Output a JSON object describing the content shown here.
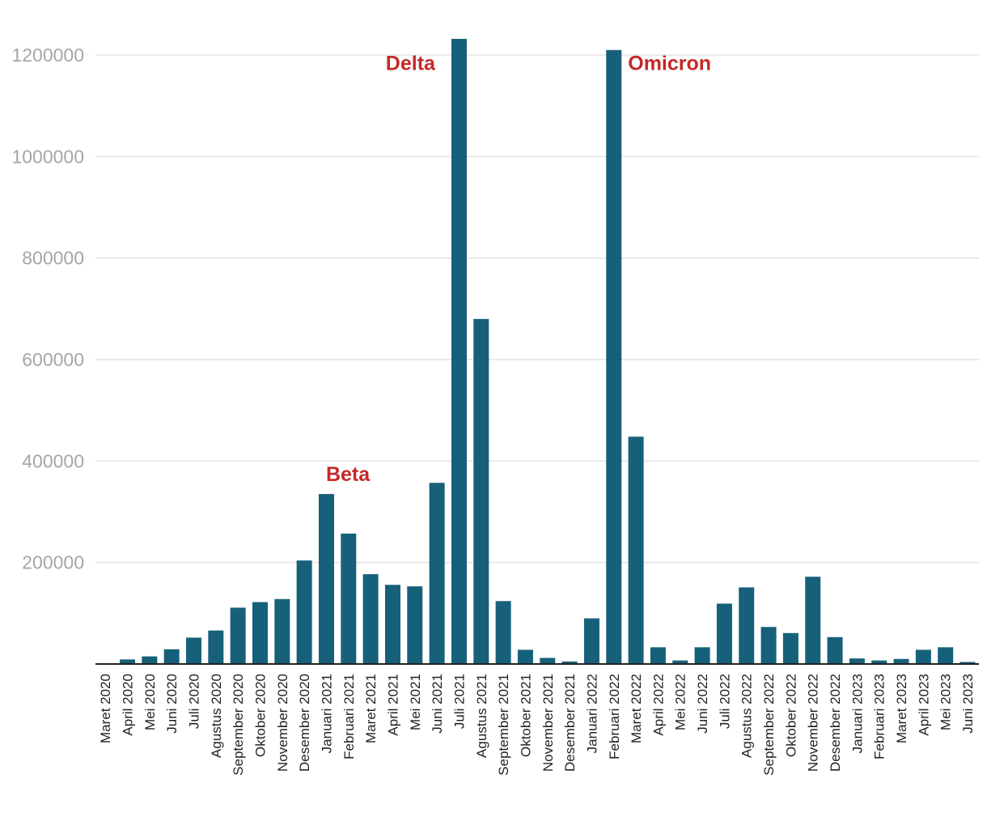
{
  "chart_data": {
    "type": "bar",
    "title": "",
    "xlabel": "",
    "ylabel": "",
    "ylim": [
      0,
      1230000
    ],
    "yticks": [
      200000,
      400000,
      600000,
      800000,
      1000000,
      1200000
    ],
    "ytick_labels": [
      "200000",
      "400000",
      "600000",
      "800000",
      "1000000",
      "1200000"
    ],
    "grid": true,
    "colors": {
      "bar": "#17607a",
      "annotation": "#c62828",
      "grid": "#e3e3e3",
      "tick_text": "#a6a6a6",
      "category_text": "#222222"
    },
    "categories": [
      "Maret 2020",
      "April 2020",
      "Mei 2020",
      "Juni 2020",
      "Juli 2020",
      "Agustus 2020",
      "September 2020",
      "Oktober 2020",
      "November 2020",
      "Desember 2020",
      "Januari 2021",
      "Februari 2021",
      "Maret 2021",
      "April 2021",
      "Mei 2021",
      "Juni 2021",
      "Juli 2021",
      "Agustus 2021",
      "September 2021",
      "Oktober 2021",
      "November 2021",
      "Desember 2021",
      "Januari 2022",
      "Februari 2022",
      "Maret 2022",
      "April 2022",
      "Mei 2022",
      "Juni 2022",
      "Juli 2022",
      "Agustus 2022",
      "September 2022",
      "Oktober 2022",
      "November 2022",
      "Desember 2022",
      "Januari 2023",
      "Februari 2023",
      "Maret 2023",
      "April 2023",
      "Mei 2023",
      "Juni 2023"
    ],
    "values": [
      1500,
      9000,
      15000,
      29000,
      52000,
      66000,
      111000,
      122000,
      128000,
      204000,
      335000,
      257000,
      177000,
      156000,
      153000,
      357000,
      1232000,
      680000,
      124000,
      28000,
      12000,
      5000,
      90000,
      1210000,
      448000,
      33000,
      7000,
      33000,
      119000,
      151000,
      73000,
      61000,
      172000,
      53000,
      11000,
      7000,
      10000,
      28000,
      33000,
      4000
    ],
    "annotations": [
      {
        "text": "Beta",
        "category": "Januari 2021",
        "value": 375000,
        "anchor": "right"
      },
      {
        "text": "Delta",
        "category": "Juli 2021",
        "value": 1185000,
        "anchor": "left"
      },
      {
        "text": "Omicron",
        "category": "Februari 2022",
        "value": 1185000,
        "anchor": "right"
      }
    ]
  }
}
